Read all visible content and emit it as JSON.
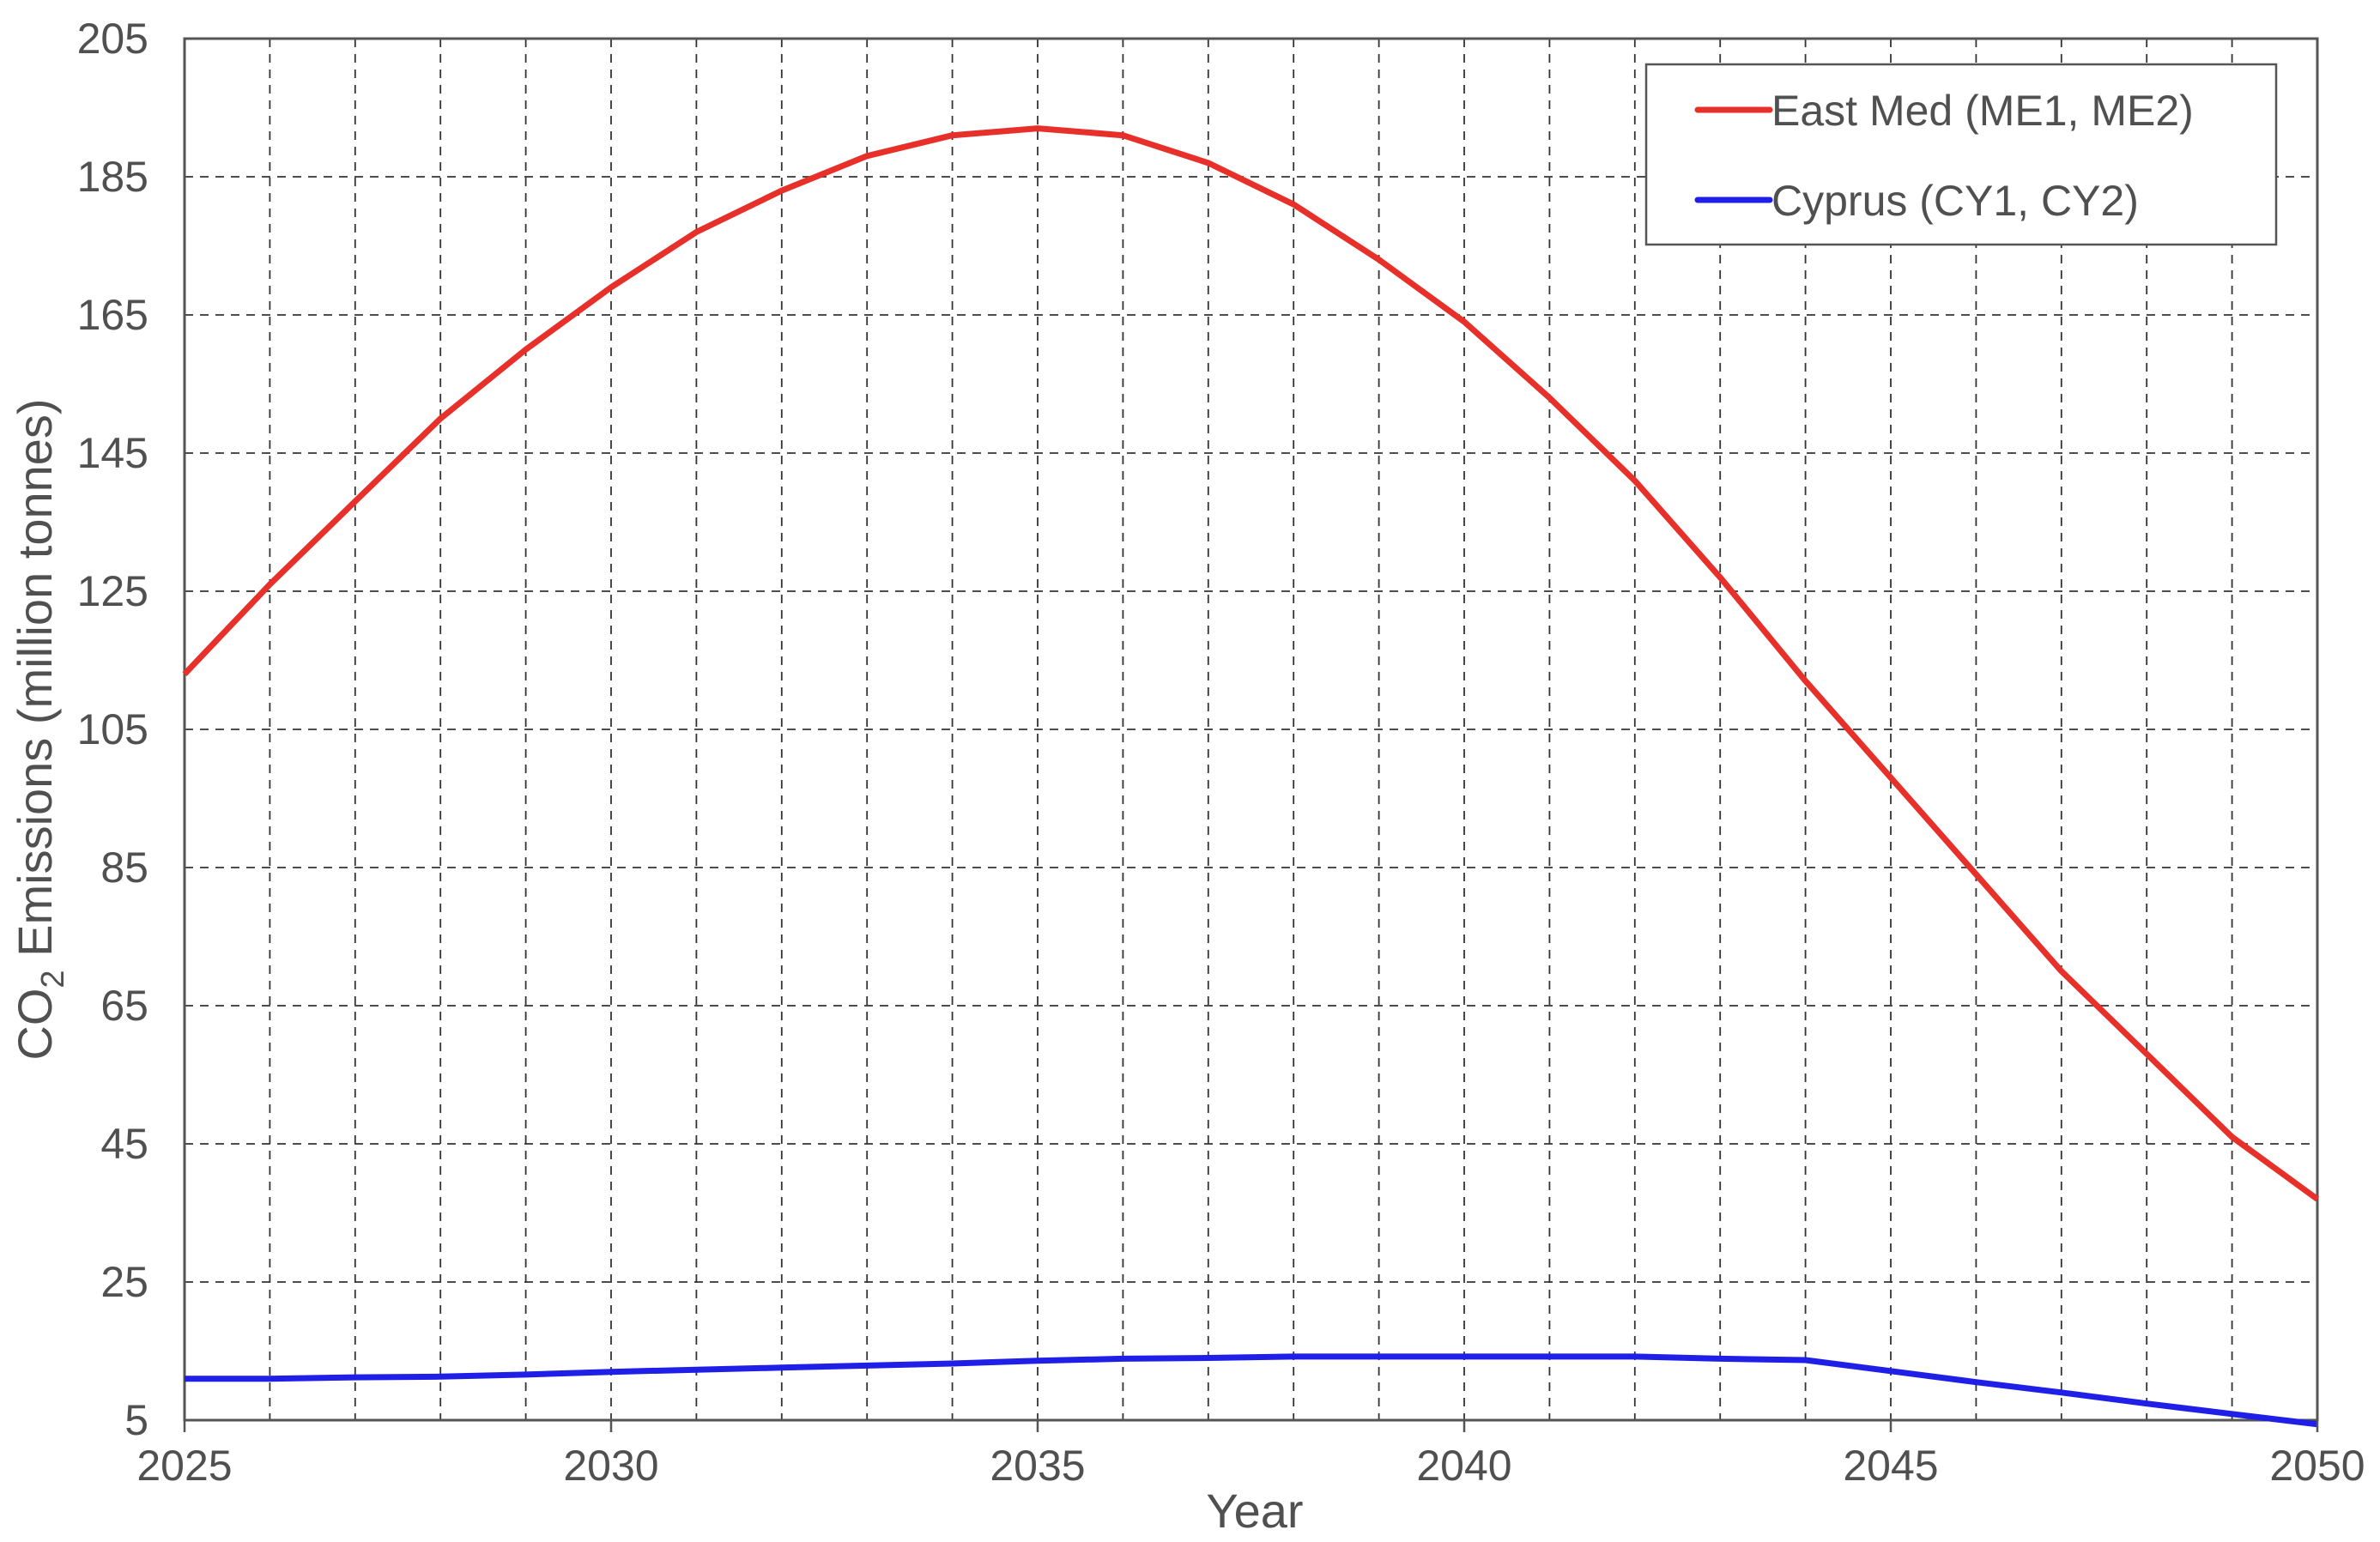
{
  "chart_data": {
    "type": "line",
    "title": "",
    "xlabel": "Year",
    "ylabel": {
      "prefix": "CO",
      "subscript": "2",
      "suffix": " Emissions (million tonnes)"
    },
    "xlim": [
      2025,
      2050
    ],
    "ylim": [
      5,
      205
    ],
    "x_major_ticks": [
      "2025",
      "2030",
      "2035",
      "2040",
      "2045",
      "2050"
    ],
    "y_ticks": [
      "5",
      "25",
      "45",
      "65",
      "85",
      "105",
      "125",
      "145",
      "165",
      "185",
      "205"
    ],
    "grid": true,
    "legend_position": "top-right",
    "x": [
      2025,
      2026,
      2027,
      2028,
      2029,
      2030,
      2031,
      2032,
      2033,
      2034,
      2035,
      2036,
      2037,
      2038,
      2039,
      2040,
      2041,
      2042,
      2043,
      2044,
      2045,
      2046,
      2047,
      2048,
      2049,
      2050
    ],
    "series": [
      {
        "name": "East Med (ME1, ME2)",
        "color": "#e8302a",
        "values": [
          113,
          126,
          138,
          150,
          160,
          169,
          177,
          183,
          188,
          191,
          192,
          191,
          187,
          181,
          173,
          164,
          153,
          141,
          127,
          112,
          98,
          84,
          70,
          58,
          46,
          37
        ]
      },
      {
        "name": "Cyprus (CY1, CY2)",
        "color": "#1f1fe8",
        "values": [
          11,
          11,
          11.2,
          11.3,
          11.6,
          12,
          12.3,
          12.6,
          12.9,
          13.2,
          13.6,
          13.9,
          14,
          14.2,
          14.2,
          14.2,
          14.2,
          14.2,
          13.9,
          13.7,
          12.1,
          10.5,
          9,
          7.4,
          5.9,
          4.4
        ]
      }
    ]
  }
}
